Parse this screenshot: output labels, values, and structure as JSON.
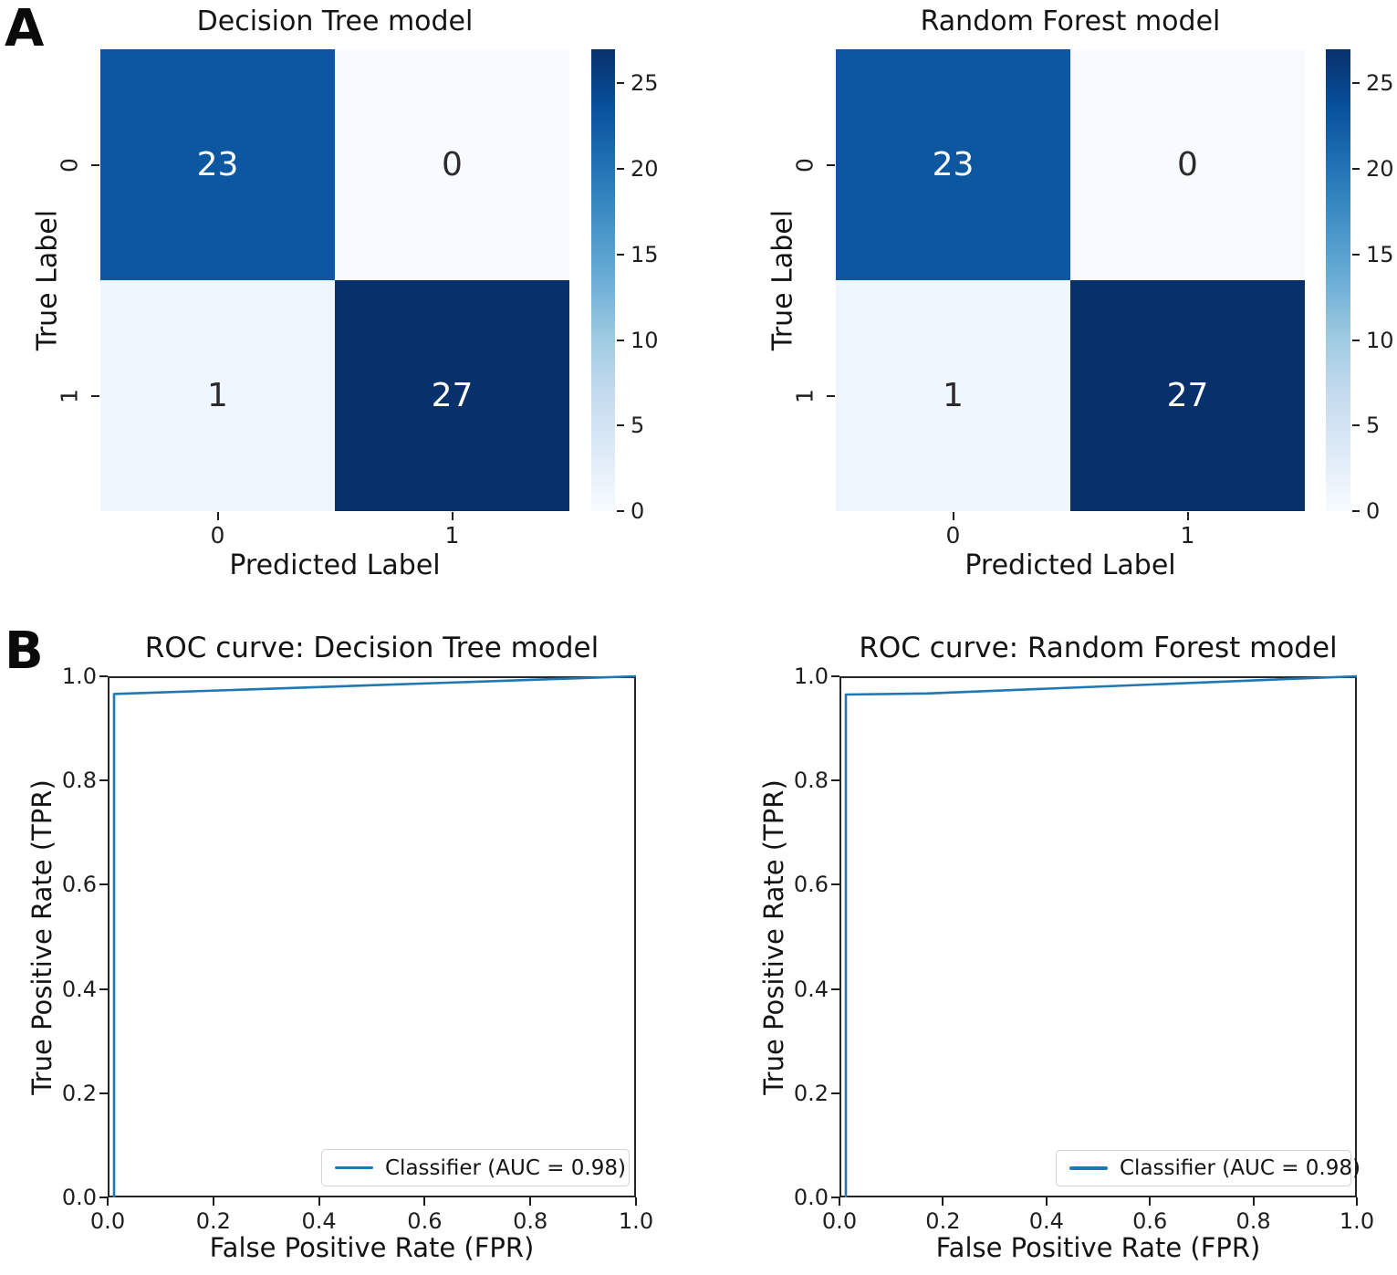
{
  "figure": {
    "panel_labels": {
      "a": "A",
      "b": "B"
    }
  },
  "colors": {
    "roc_line": "#1f77b4",
    "colormap": "Blues",
    "colormap_min": "#f7fbff",
    "colormap_max": "#08306b",
    "axis_text": "#1f1f1f"
  },
  "chart_data": [
    {
      "type": "heatmap",
      "panel": "A",
      "title": "Decision Tree model",
      "xlabel": "Predicted Label",
      "ylabel": "True Label",
      "x_tick_labels": [
        "0",
        "1"
      ],
      "y_tick_labels": [
        "0",
        "1"
      ],
      "rows": [
        [
          23,
          0
        ],
        [
          1,
          27
        ]
      ],
      "vmin": 0,
      "vmax": 27,
      "colormap": "Blues",
      "colorbar_ticks": [
        0,
        5,
        10,
        15,
        20,
        25
      ]
    },
    {
      "type": "heatmap",
      "panel": "A",
      "title": "Random Forest model",
      "xlabel": "Predicted Label",
      "ylabel": "True Label",
      "x_tick_labels": [
        "0",
        "1"
      ],
      "y_tick_labels": [
        "0",
        "1"
      ],
      "rows": [
        [
          23,
          0
        ],
        [
          1,
          27
        ]
      ],
      "vmin": 0,
      "vmax": 27,
      "colormap": "Blues",
      "colorbar_ticks": [
        0,
        5,
        10,
        15,
        20,
        25
      ]
    },
    {
      "type": "line",
      "panel": "B",
      "title": "ROC curve: Decision Tree model",
      "xlabel": "False Positive Rate (FPR)",
      "ylabel": "True Positive Rate (TPR)",
      "x_tick_labels": [
        "0.0",
        "0.2",
        "0.4",
        "0.6",
        "0.8",
        "1.0"
      ],
      "y_tick_labels": [
        "0.0",
        "0.2",
        "0.4",
        "0.6",
        "0.8",
        "1.0"
      ],
      "xlim": [
        0,
        1
      ],
      "ylim": [
        0,
        1
      ],
      "grid": false,
      "legend_position": "lower right",
      "series": [
        {
          "name": "Classifier",
          "label": "Classifier (AUC = 0.98)",
          "auc": 0.98,
          "color": "#1f77b4",
          "points": [
            [
              0,
              0
            ],
            [
              0,
              0.966
            ],
            [
              1.0,
              1.0
            ]
          ]
        }
      ]
    },
    {
      "type": "line",
      "panel": "B",
      "title": "ROC curve: Random Forest model",
      "xlabel": "False Positive Rate (FPR)",
      "ylabel": "True Positive Rate (TPR)",
      "x_tick_labels": [
        "0.0",
        "0.2",
        "0.4",
        "0.6",
        "0.8",
        "1.0"
      ],
      "y_tick_labels": [
        "0.0",
        "0.2",
        "0.4",
        "0.6",
        "0.8",
        "1.0"
      ],
      "xlim": [
        0,
        1
      ],
      "ylim": [
        0,
        1
      ],
      "grid": false,
      "legend_position": "lower right",
      "series": [
        {
          "name": "Classifier",
          "label": "Classifier (AUC = 0.98)",
          "auc": 0.98,
          "color": "#1f77b4",
          "points": [
            [
              0,
              0
            ],
            [
              0,
              0.965
            ],
            [
              0.16,
              0.967
            ],
            [
              1.0,
              1.0
            ]
          ]
        }
      ]
    }
  ]
}
